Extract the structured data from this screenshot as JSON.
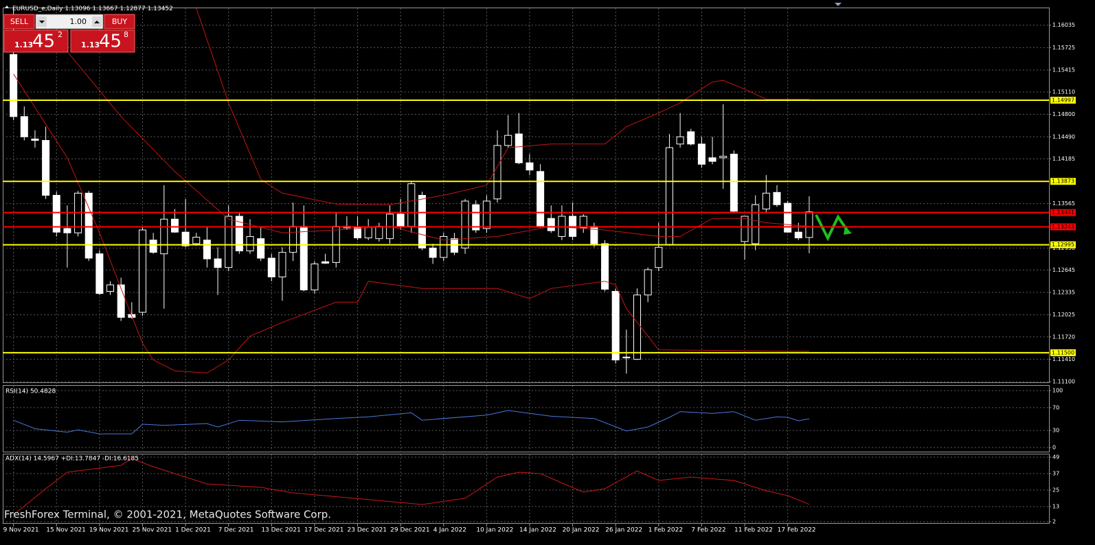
{
  "header": {
    "symbol": "EURUSD_e,Daily"
  },
  "trade_panel": {
    "sell": "SELL",
    "lot": "1.00",
    "buy": "BUY",
    "sell_big": "1.13",
    "sell_pips": "45",
    "sell_frac": "2",
    "buy_big": "1.13",
    "buy_pips": "45",
    "buy_frac": "8"
  },
  "footer": "FreshForex Terminal, © 2001-2021, MetaQuotes Software Corp.",
  "chart_data": [
    {
      "type": "candlestick",
      "open": [
        1.1563,
        1.1477,
        1.1446,
        1.1444,
        1.1368,
        1.1322,
        1.1316,
        1.1371,
        1.1287,
        1.1235,
        1.1244,
        1.1203,
        1.1206,
        1.1306,
        1.1287,
        1.1335,
        1.1317,
        1.1301,
        1.1306,
        1.128,
        1.1268,
        1.1339,
        1.1291,
        1.1308,
        1.1281,
        1.1255,
        1.1289,
        1.1325,
        1.1237,
        1.1276,
        1.1275,
        1.1325,
        1.1323,
        1.1309,
        1.1308,
        1.1308,
        1.1342,
        1.1325,
        1.1368,
        1.1295,
        1.1282,
        1.1308,
        1.1295,
        1.1355,
        1.1322,
        1.1363,
        1.1437,
        1.1453,
        1.1413,
        1.1401,
        1.1336,
        1.1311,
        1.1339,
        1.1323,
        1.1325,
        1.1301,
        1.1235,
        1.1144,
        1.1141,
        1.123,
        1.1268,
        1.13,
        1.1439,
        1.1456,
        1.1439,
        1.142,
        1.142,
        1.1425,
        1.1304,
        1.1301,
        1.1349,
        1.1372,
        1.1357,
        1.1317,
        1.13096
      ],
      "high": [
        1.1627,
        1.1491,
        1.1458,
        1.1463,
        1.1373,
        1.1354,
        1.1374,
        1.1374,
        1.1292,
        1.1249,
        1.1254,
        1.122,
        1.1325,
        1.1316,
        1.1382,
        1.1349,
        1.1363,
        1.1316,
        1.1325,
        1.1296,
        1.1354,
        1.1344,
        1.1335,
        1.1325,
        1.1287,
        1.1296,
        1.1358,
        1.1354,
        1.1277,
        1.1287,
        1.1344,
        1.1339,
        1.1339,
        1.1335,
        1.133,
        1.1354,
        1.1363,
        1.1387,
        1.1373,
        1.1301,
        1.1316,
        1.1316,
        1.1363,
        1.1361,
        1.1368,
        1.1458,
        1.1479,
        1.1482,
        1.1425,
        1.1411,
        1.1354,
        1.1354,
        1.1358,
        1.1342,
        1.133,
        1.1306,
        1.1239,
        1.1182,
        1.1239,
        1.1268,
        1.133,
        1.1453,
        1.1482,
        1.146,
        1.1449,
        1.1449,
        1.1494,
        1.143,
        1.1339,
        1.1368,
        1.1396,
        1.1382,
        1.136,
        1.133,
        1.13667
      ],
      "low": [
        1.1472,
        1.1444,
        1.1434,
        1.1363,
        1.1311,
        1.1268,
        1.1311,
        1.1277,
        1.123,
        1.123,
        1.1194,
        1.1197,
        1.1201,
        1.1287,
        1.1211,
        1.1316,
        1.1296,
        1.1298,
        1.1268,
        1.123,
        1.1263,
        1.1287,
        1.1287,
        1.1277,
        1.1249,
        1.1222,
        1.1277,
        1.1235,
        1.1232,
        1.1273,
        1.1268,
        1.132,
        1.1306,
        1.1306,
        1.1304,
        1.1301,
        1.132,
        1.1316,
        1.1292,
        1.1273,
        1.1277,
        1.1285,
        1.1287,
        1.1316,
        1.1316,
        1.1358,
        1.1434,
        1.1411,
        1.1396,
        1.1323,
        1.1316,
        1.1306,
        1.1306,
        1.1316,
        1.1296,
        1.1235,
        1.1135,
        1.1121,
        1.114,
        1.122,
        1.1263,
        1.1298,
        1.1434,
        1.1437,
        1.1406,
        1.1411,
        1.1377,
        1.1344,
        1.1279,
        1.1292,
        1.1344,
        1.1352,
        1.1316,
        1.1306,
        1.12877
      ],
      "close": [
        1.1477,
        1.1449,
        1.1444,
        1.1368,
        1.1317,
        1.1316,
        1.1371,
        1.1281,
        1.1232,
        1.1244,
        1.1199,
        1.1199,
        1.132,
        1.1289,
        1.1335,
        1.1317,
        1.1298,
        1.131,
        1.128,
        1.1268,
        1.1339,
        1.1291,
        1.1311,
        1.1281,
        1.1255,
        1.1289,
        1.1325,
        1.1237,
        1.1273,
        1.1274,
        1.1325,
        1.1323,
        1.1309,
        1.1324,
        1.1325,
        1.1342,
        1.1325,
        1.1384,
        1.1295,
        1.1282,
        1.1311,
        1.1289,
        1.136,
        1.132,
        1.136,
        1.1437,
        1.1451,
        1.1413,
        1.1403,
        1.1325,
        1.1319,
        1.1339,
        1.1311,
        1.1339,
        1.1301,
        1.1238,
        1.114,
        1.1143,
        1.123,
        1.1265,
        1.1296,
        1.1434,
        1.1449,
        1.1439,
        1.1411,
        1.1415,
        1.1422,
        1.1346,
        1.1339,
        1.1355,
        1.1371,
        1.1355,
        1.1317,
        1.1309,
        1.13452
      ],
      "bull_color": "#000000",
      "bear_color": "#ffffff",
      "wick_color": "#ffffff",
      "xlim": [
        -1,
        96.3
      ],
      "xticks": [
        {
          "value": 0,
          "label": "9 Nov 2021"
        },
        {
          "value": 4,
          "label": "15 Nov 2021"
        },
        {
          "value": 8,
          "label": "19 Nov 2021"
        },
        {
          "value": 12,
          "label": "25 Nov 2021"
        },
        {
          "value": 16,
          "label": "1 Dec 2021"
        },
        {
          "value": 20,
          "label": "7 Dec 2021"
        },
        {
          "value": 24,
          "label": "13 Dec 2021"
        },
        {
          "value": 28,
          "label": "17 Dec 2021"
        },
        {
          "value": 32,
          "label": "23 Dec 2021"
        },
        {
          "value": 36,
          "label": "29 Dec 2021"
        },
        {
          "value": 40,
          "label": "4 Jan 2022"
        },
        {
          "value": 44,
          "label": "10 Jan 2022"
        },
        {
          "value": 48,
          "label": "14 Jan 2022"
        },
        {
          "value": 52,
          "label": "20 Jan 2022"
        },
        {
          "value": 56,
          "label": "26 Jan 2022"
        },
        {
          "value": 60,
          "label": "1 Feb 2022"
        },
        {
          "value": 64,
          "label": "7 Feb 2022"
        },
        {
          "value": 68,
          "label": "11 Feb 2022"
        },
        {
          "value": 72,
          "label": "17 Feb 2022"
        }
      ],
      "ylim": [
        1.111,
        1.1627
      ],
      "yticks": [
        1.16035,
        1.15725,
        1.15415,
        {
          "value": 1.1511,
          "label": "1.15110"
        },
        {
          "value": 1.148,
          "label": "1.14800"
        },
        {
          "value": 1.1449,
          "label": "1.14490"
        },
        1.14185,
        1.13565,
        {
          "value": 1.1295,
          "label": "1.12950"
        },
        1.12645,
        1.12335,
        1.12025,
        {
          "value": 1.1172,
          "label": "1.11720"
        },
        {
          "value": 1.1141,
          "label": "1.11410"
        },
        {
          "value": 1.111,
          "label": "1.11100"
        }
      ],
      "grid": true,
      "levels": [
        {
          "value": 1.14997,
          "color": "#ffff00"
        },
        {
          "value": 1.13873,
          "color": "#ffff00"
        },
        {
          "value": 1.13441,
          "color": "#ff0000"
        },
        {
          "value": 1.13243,
          "color": "#ff0000"
        },
        {
          "value": 1.12995,
          "color": "#ffff00"
        },
        {
          "value": 1.115,
          "label": "1.11500",
          "color": "#ffff00"
        }
      ],
      "bands": [
        {
          "color": "#c81414",
          "x": [
            17,
            20,
            23,
            25,
            30,
            35,
            40,
            44,
            46,
            50,
            55,
            57,
            60,
            62,
            65,
            66,
            68,
            70,
            74
          ],
          "values": [
            1.1627,
            1.1496,
            1.139,
            1.1371,
            1.1356,
            1.1355,
            1.1368,
            1.1382,
            1.1434,
            1.1439,
            1.1439,
            1.1463,
            1.1482,
            1.1496,
            1.1525,
            1.1527,
            1.1515,
            1.1501,
            1.1501
          ]
        },
        {
          "color": "#c81414",
          "x": [
            3,
            5,
            10,
            15,
            20,
            25,
            30,
            35,
            40,
            45,
            50,
            55,
            60,
            62,
            65,
            68,
            70,
            74
          ],
          "values": [
            1.1601,
            1.1567,
            1.1477,
            1.1401,
            1.1335,
            1.1316,
            1.132,
            1.1325,
            1.1306,
            1.1311,
            1.1325,
            1.132,
            1.1311,
            1.1311,
            1.1336,
            1.1336,
            1.133,
            1.1325
          ]
        },
        {
          "color": "#c81414",
          "x": [
            0,
            5,
            8,
            10,
            12,
            13,
            15,
            18,
            20,
            22,
            25,
            30,
            32,
            33,
            38,
            45,
            48,
            50,
            55,
            56,
            57,
            60,
            74
          ],
          "values": [
            1.1536,
            1.142,
            1.1316,
            1.1239,
            1.1163,
            1.114,
            1.1125,
            1.1122,
            1.114,
            1.1173,
            1.1192,
            1.122,
            1.122,
            1.1249,
            1.1239,
            1.1239,
            1.1225,
            1.1239,
            1.1249,
            1.1244,
            1.1211,
            1.1154,
            1.1152
          ]
        }
      ]
    },
    {
      "type": "line",
      "title": "RSI(14) 50.4828",
      "color": "#4a78e0",
      "x": [
        0,
        2,
        5,
        6,
        8,
        11,
        12,
        14,
        18,
        19,
        21,
        25,
        30,
        33,
        37,
        38,
        44,
        46,
        50,
        54,
        57,
        59,
        61,
        62,
        65,
        67,
        69,
        71,
        72,
        73,
        74
      ],
      "values": [
        48,
        33,
        27,
        31,
        24,
        24,
        41,
        39,
        42,
        36,
        48,
        45,
        51,
        54,
        61,
        48,
        57,
        65,
        55,
        51,
        29,
        36,
        53,
        63,
        60,
        63,
        48,
        54,
        53,
        47,
        50.48
      ],
      "xlim": [
        -1,
        96.3
      ],
      "ylim": [
        0,
        100
      ],
      "yticks": [
        100,
        70,
        30,
        0
      ],
      "grid": true
    },
    {
      "type": "line",
      "title": "ADX(14) 14.5967 +DI:13.7847 -DI:16.6185",
      "color": "#d01818",
      "x": [
        0,
        3,
        5,
        10,
        11,
        13,
        18,
        23,
        26,
        31,
        38,
        42,
        45,
        47,
        49,
        53,
        55,
        58,
        60,
        63,
        67,
        70,
        72,
        74
      ],
      "values": [
        7,
        26,
        38,
        43,
        48,
        42,
        29.5,
        27,
        23,
        19.5,
        14.5,
        19,
        34.5,
        38,
        37,
        23.5,
        26,
        39,
        32,
        34.5,
        32,
        24.5,
        21,
        14.6
      ],
      "xlim": [
        -1,
        96.3
      ],
      "ylim": [
        2,
        51
      ],
      "yticks": [
        49,
        37,
        25,
        13,
        2
      ],
      "grid": true
    }
  ]
}
